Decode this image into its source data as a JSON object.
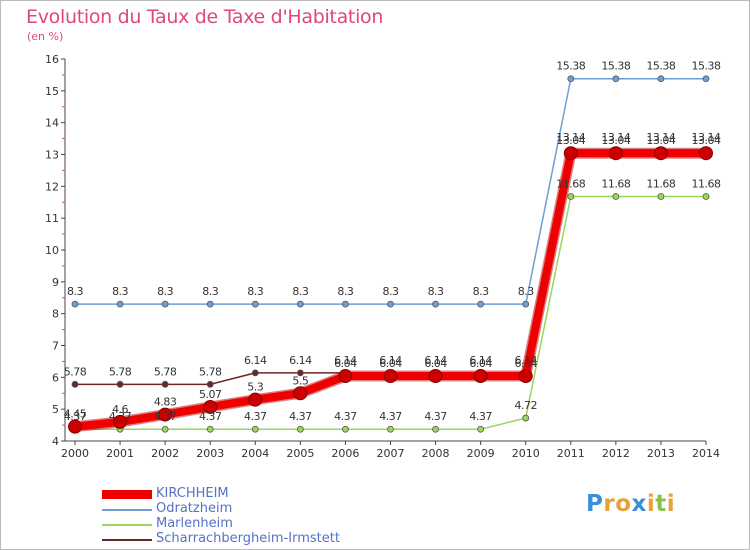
{
  "chart_data": {
    "type": "line",
    "title": "Evolution du Taux de Taxe d'Habitation",
    "subtitle": "(en %)",
    "categories": [
      "2000",
      "2001",
      "2002",
      "2003",
      "2004",
      "2005",
      "2006",
      "2007",
      "2008",
      "2009",
      "2010",
      "2011",
      "2012",
      "2013",
      "2014"
    ],
    "ylim": [
      4,
      16
    ],
    "yticks": [
      4,
      5,
      6,
      7,
      8,
      9,
      10,
      11,
      12,
      13,
      14,
      15,
      16
    ],
    "grid": false,
    "legend_position": "bottom-left",
    "series": [
      {
        "name": "KIRCHHEIM",
        "color": "#ee0000",
        "values": [
          4.45,
          4.6,
          4.83,
          5.07,
          5.3,
          5.5,
          6.04,
          6.04,
          6.04,
          6.04,
          6.04,
          13.04,
          13.04,
          13.04,
          13.04
        ],
        "labels": [
          "4.45",
          "4.6",
          "4.83",
          "5.07",
          "5.3",
          "5.5",
          "6.04",
          "6.04",
          "6.04",
          "6.04",
          "6.04",
          "13.04",
          "13.04",
          "13.04",
          "13.04"
        ]
      },
      {
        "name": "Odratzheim",
        "color": "#6e9fd2",
        "values": [
          8.3,
          8.3,
          8.3,
          8.3,
          8.3,
          8.3,
          8.3,
          8.3,
          8.3,
          8.3,
          8.3,
          15.38,
          15.38,
          15.38,
          15.38
        ],
        "labels": [
          "8.3",
          "8.3",
          "8.3",
          "8.3",
          "8.3",
          "8.3",
          "8.3",
          "8.3",
          "8.3",
          "8.3",
          "8.3",
          "15.38",
          "15.38",
          "15.38",
          "15.38"
        ]
      },
      {
        "name": "Marlenheim",
        "color": "#99d65a",
        "values": [
          4.37,
          4.37,
          4.37,
          4.37,
          4.37,
          4.37,
          4.37,
          4.37,
          4.37,
          4.37,
          4.72,
          11.68,
          11.68,
          11.68,
          11.68
        ],
        "labels": [
          "4.37",
          "4.37",
          "4.37",
          "4.37",
          "4.37",
          "4.37",
          "4.37",
          "4.37",
          "4.37",
          "4.37",
          "4.72",
          "11.68",
          "11.68",
          "11.68",
          "11.68"
        ]
      },
      {
        "name": "Scharrachbergheim-Irmstett",
        "color": "#6b2626",
        "values": [
          5.78,
          5.78,
          5.78,
          5.78,
          6.14,
          6.14,
          6.14,
          6.14,
          6.14,
          6.14,
          6.14,
          13.14,
          13.14,
          13.14,
          13.14
        ],
        "labels": [
          "5.78",
          "5.78",
          "5.78",
          "5.78",
          "6.14",
          "6.14",
          "6.14",
          "6.14",
          "6.14",
          "6.14",
          "6.14",
          "13.14",
          "13.14",
          "13.14",
          "13.14"
        ]
      }
    ]
  },
  "logo": {
    "letters": [
      "P",
      "r",
      "o",
      "x",
      "i",
      "t",
      "i"
    ],
    "colors": [
      "#3a8fd6",
      "#e8a23a",
      "#e8a23a",
      "#3a8fd6",
      "#e8a23a",
      "#8cc04a",
      "#e8a23a"
    ]
  }
}
